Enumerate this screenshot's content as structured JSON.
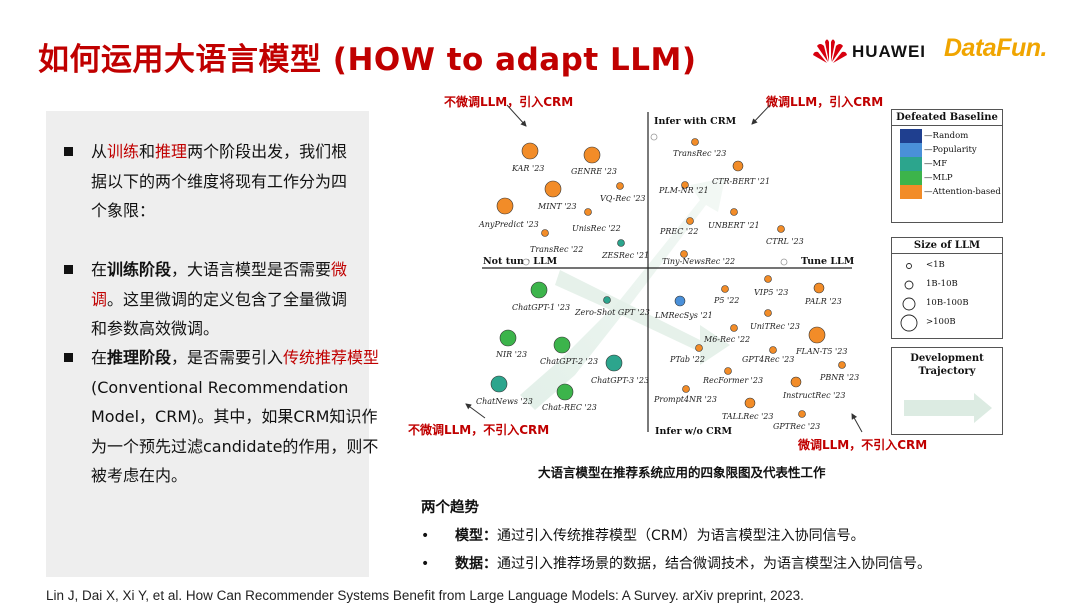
{
  "header": {
    "title": "如何运用大语言模型 (HOW to adapt LLM)",
    "logo_huawei": "HUAWEI",
    "logo_datafun": "DataFun."
  },
  "left_panel": {
    "p1": {
      "a": "从",
      "b": "训练",
      "c": "和",
      "d": "推理",
      "e": "两个阶段出发，我们根据以下的两个维度将现有工作分为四个象限："
    },
    "p2": {
      "a": "在",
      "b": "训练阶段",
      "c": "，大语言模型是否需要",
      "d": "微调",
      "e": "。这里微调的定义包含了全量微调和参数高效微调。"
    },
    "p3": {
      "a": "在",
      "b": "推理阶段",
      "c": "，是否需要引入",
      "d": "传统推荐模型",
      "e": "(Conventional Recommendation Model，CRM)。其中，如果CRM知识作为一个预先过滤candidate的作用，则不被考虑在内。"
    }
  },
  "figure": {
    "quadrant_labels": {
      "top_left": "不微调LLM，引入CRM",
      "top_right": "微调LLM，引入CRM",
      "bottom_left": "不微调LLM，不引入CRM",
      "bottom_right": "微调LLM，不引入CRM"
    },
    "axes": {
      "top": "Infer with CRM",
      "bottom": "Infer w/o CRM",
      "left": "Not tune LLM",
      "right": "Tune LLM"
    },
    "points": [
      {
        "label": "KAR '23",
        "color": "#f28c28",
        "size": "10B-100B",
        "q": "tl"
      },
      {
        "label": "GENRE '23",
        "color": "#f28c28",
        "size": "10B-100B",
        "q": "tl"
      },
      {
        "label": "MINT '23",
        "color": "#f28c28",
        "size": "10B-100B",
        "q": "tl"
      },
      {
        "label": "VQ-Rec '23",
        "color": "#f28c28",
        "size": "<1B",
        "q": "tl"
      },
      {
        "label": "AnyPredict '23",
        "color": "#f28c28",
        "size": "10B-100B",
        "q": "tl"
      },
      {
        "label": "UnisRec '22",
        "color": "#f28c28",
        "size": "<1B",
        "q": "tl"
      },
      {
        "label": "TransRec '22",
        "color": "#f28c28",
        "size": "<1B",
        "q": "tl"
      },
      {
        "label": "ZESRec '21",
        "color": "#2ca58d",
        "size": "<1B",
        "q": "tl"
      },
      {
        "label": "TransRec '23",
        "color": "#f28c28",
        "size": "<1B",
        "q": "tr"
      },
      {
        "label": "CTR-BERT '21",
        "color": "#f28c28",
        "size": "1B-10B",
        "q": "tr"
      },
      {
        "label": "PLM-NR '21",
        "color": "#f28c28",
        "size": "<1B",
        "q": "tr"
      },
      {
        "label": "UNBERT '21",
        "color": "#f28c28",
        "size": "<1B",
        "q": "tr"
      },
      {
        "label": "PREC '22",
        "color": "#f28c28",
        "size": "<1B",
        "q": "tr"
      },
      {
        "label": "CTRL '23",
        "color": "#f28c28",
        "size": "<1B",
        "q": "tr"
      },
      {
        "label": "Tiny-NewsRec '22",
        "color": "#f28c28",
        "size": "<1B",
        "q": "tr"
      },
      {
        "label": "ChatGPT-1 '23",
        "color": "#3cb44b",
        "size": "10B-100B",
        "q": "bl"
      },
      {
        "label": "Zero-Shot GPT '23",
        "color": "#2ca58d",
        "size": "<1B",
        "q": "bl"
      },
      {
        "label": "NIR '23",
        "color": "#3cb44b",
        "size": "10B-100B",
        "q": "bl"
      },
      {
        "label": "ChatGPT-2 '23",
        "color": "#3cb44b",
        "size": "10B-100B",
        "q": "bl"
      },
      {
        "label": "ChatGPT-3 '23",
        "color": "#2ca58d",
        "size": "10B-100B",
        "q": "bl"
      },
      {
        "label": "ChatNews '23",
        "color": "#2ca58d",
        "size": "10B-100B",
        "q": "bl"
      },
      {
        "label": "Chat-REC '23",
        "color": "#3cb44b",
        "size": "10B-100B",
        "q": "bl"
      },
      {
        "label": "LMRecSys '21",
        "color": "#4a90d9",
        "size": "1B-10B",
        "q": "br"
      },
      {
        "label": "P5 '22",
        "color": "#f28c28",
        "size": "<1B",
        "q": "br"
      },
      {
        "label": "VIP5 '23",
        "color": "#f28c28",
        "size": "<1B",
        "q": "br"
      },
      {
        "label": "PALR '23",
        "color": "#f28c28",
        "size": "1B-10B",
        "q": "br"
      },
      {
        "label": "UniTRec '23",
        "color": "#f28c28",
        "size": "<1B",
        "q": "br"
      },
      {
        "label": "M6-Rec '22",
        "color": "#f28c28",
        "size": "<1B",
        "q": "br"
      },
      {
        "label": "FLAN-T5 '23",
        "color": "#f28c28",
        "size": "10B-100B",
        "q": "br"
      },
      {
        "label": "PTab '22",
        "color": "#f28c28",
        "size": "<1B",
        "q": "br"
      },
      {
        "label": "GPT4Rec '23",
        "color": "#f28c28",
        "size": "<1B",
        "q": "br"
      },
      {
        "label": "PBNR '23",
        "color": "#f28c28",
        "size": "<1B",
        "q": "br"
      },
      {
        "label": "RecFormer '23",
        "color": "#f28c28",
        "size": "<1B",
        "q": "br"
      },
      {
        "label": "InstructRec '23",
        "color": "#f28c28",
        "size": "1B-10B",
        "q": "br"
      },
      {
        "label": "Prompt4NR '23",
        "color": "#f28c28",
        "size": "<1B",
        "q": "br"
      },
      {
        "label": "TALLRec '23",
        "color": "#f28c28",
        "size": "1B-10B",
        "q": "br"
      },
      {
        "label": "GPTRec '23",
        "color": "#f28c28",
        "size": "<1B",
        "q": "br"
      }
    ],
    "legend_baseline": {
      "title": "Defeated Baseline",
      "items": [
        {
          "label": "Random",
          "color": "#1f3f8f"
        },
        {
          "label": "Popularity",
          "color": "#4a90d9"
        },
        {
          "label": "MF",
          "color": "#2ca58d"
        },
        {
          "label": "MLP",
          "color": "#3cb44b"
        },
        {
          "label": "Attention-based",
          "color": "#f28c28"
        }
      ]
    },
    "legend_size": {
      "title": "Size of LLM",
      "items": [
        "<1B",
        "1B-10B",
        "10B-100B",
        ">100B"
      ]
    },
    "legend_trajectory": {
      "title_line1": "Development",
      "title_line2": "Trajectory"
    },
    "caption": "大语言模型在推荐系统应用的四象限图及代表性工作"
  },
  "trends": {
    "title": "两个趋势",
    "bullet": "•",
    "items": [
      {
        "head": "模型：",
        "body": "通过引入传统推荐模型（CRM）为语言模型注入协同信号。"
      },
      {
        "head": "数据：",
        "body": "通过引入推荐场景的数据，结合微调技术，为语言模型注入协同信号。"
      }
    ]
  },
  "reference": "Lin J, Dai X, Xi Y, et al. How Can Recommender Systems Benefit from Large Language Models: A Survey. arXiv preprint, 2023."
}
